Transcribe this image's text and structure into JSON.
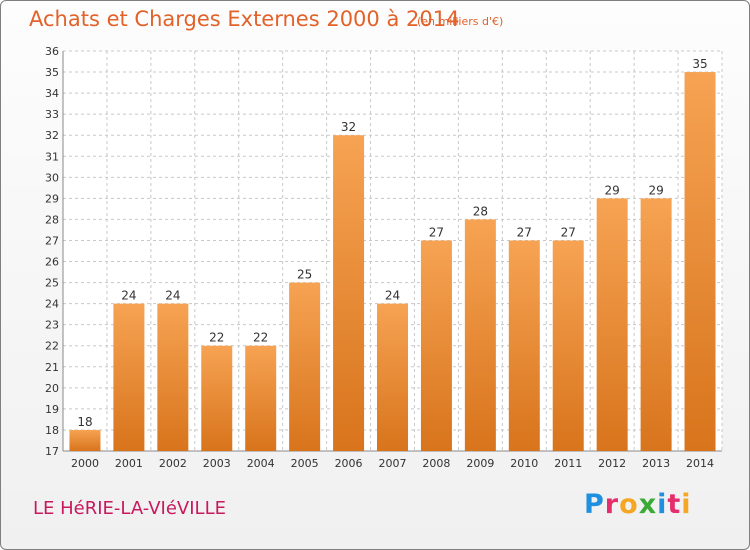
{
  "title": "Achats et Charges Externes 2000 à 2014",
  "unit_note": "(en milliers d'€)",
  "place_name": "LE HéRIE-LA-VIéVILLE",
  "brand": {
    "letters": [
      {
        "ch": "P",
        "color": "#1f8fe0"
      },
      {
        "ch": "r",
        "color": "#e52d6c"
      },
      {
        "ch": "o",
        "color": "#f5a623"
      },
      {
        "ch": "x",
        "color": "#3aa935"
      },
      {
        "ch": "i",
        "color": "#1f8fe0"
      },
      {
        "ch": "t",
        "color": "#e52d6c"
      },
      {
        "ch": "i",
        "color": "#f5a623"
      }
    ]
  },
  "colors": {
    "bar_top": "#f6a353",
    "bar_bottom": "#d8741c",
    "grid": "#c8c8c8",
    "axis_text": "#333333",
    "title": "#e2622a",
    "place": "#c8195d"
  },
  "chart_data": {
    "type": "bar",
    "categories": [
      "2000",
      "2001",
      "2002",
      "2003",
      "2004",
      "2005",
      "2006",
      "2007",
      "2008",
      "2009",
      "2010",
      "2011",
      "2012",
      "2013",
      "2014"
    ],
    "values": [
      18,
      24,
      24,
      22,
      22,
      25,
      32,
      24,
      27,
      28,
      27,
      27,
      29,
      29,
      35
    ],
    "ylim": [
      17,
      36
    ],
    "yticks": [
      17,
      18,
      19,
      20,
      21,
      22,
      23,
      24,
      25,
      26,
      27,
      28,
      29,
      30,
      31,
      32,
      33,
      34,
      35,
      36
    ],
    "grid": true,
    "data_labels": true
  }
}
